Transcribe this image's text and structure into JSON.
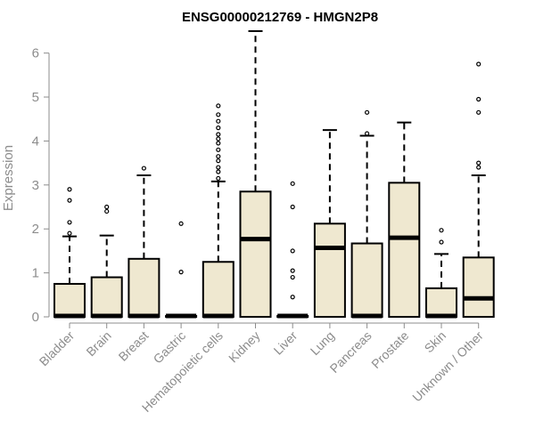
{
  "chart_data": {
    "type": "box",
    "title": "ENSG00000212769 - HMGN2P8",
    "xlabel": "",
    "ylabel": "Expression",
    "ylim": [
      0,
      6.6
    ],
    "yticks": [
      0,
      1,
      2,
      3,
      4,
      5,
      6
    ],
    "box_fill": "#efe8d0",
    "categories": [
      "Bladder",
      "Brain",
      "Breast",
      "Gastric",
      "Hematopoietic cells",
      "Kidney",
      "Liver",
      "Lung",
      "Pancreas",
      "Prostate",
      "Skin",
      "Unknown / Other"
    ],
    "boxes": [
      {
        "q1": 0,
        "median": 0.02,
        "q3": 0.75,
        "whisker_low": 0,
        "whisker_high": 1.83,
        "outliers": [
          1.9,
          2.15,
          2.65,
          2.9
        ]
      },
      {
        "q1": 0,
        "median": 0.02,
        "q3": 0.9,
        "whisker_low": 0,
        "whisker_high": 1.85,
        "outliers": [
          2.4,
          2.5
        ]
      },
      {
        "q1": 0,
        "median": 0.02,
        "q3": 1.32,
        "whisker_low": 0,
        "whisker_high": 3.22,
        "outliers": [
          3.38
        ]
      },
      {
        "q1": 0,
        "median": 0.02,
        "q3": 0.02,
        "whisker_low": 0,
        "whisker_high": 0.02,
        "outliers": [
          1.02,
          2.12
        ]
      },
      {
        "q1": 0,
        "median": 0.02,
        "q3": 1.25,
        "whisker_low": 0,
        "whisker_high": 3.08,
        "outliers": [
          3.15,
          3.3,
          3.4,
          3.55,
          3.65,
          3.8,
          3.95,
          4.05,
          4.15,
          4.3,
          4.45,
          4.6,
          4.8
        ]
      },
      {
        "q1": 0,
        "median": 1.77,
        "q3": 2.85,
        "whisker_low": 0,
        "whisker_high": 6.5,
        "outliers": []
      },
      {
        "q1": 0,
        "median": 0.02,
        "q3": 0.02,
        "whisker_low": 0,
        "whisker_high": 0.02,
        "outliers": [
          0.45,
          0.9,
          1.05,
          1.5,
          2.5,
          3.03
        ]
      },
      {
        "q1": 0,
        "median": 1.57,
        "q3": 2.12,
        "whisker_low": 0,
        "whisker_high": 4.25,
        "outliers": []
      },
      {
        "q1": 0,
        "median": 0.02,
        "q3": 1.67,
        "whisker_low": 0,
        "whisker_high": 4.12,
        "outliers": [
          4.17,
          4.65
        ]
      },
      {
        "q1": 0,
        "median": 1.8,
        "q3": 3.05,
        "whisker_low": 0,
        "whisker_high": 4.42,
        "outliers": []
      },
      {
        "q1": 0,
        "median": 0.02,
        "q3": 0.65,
        "whisker_low": 0,
        "whisker_high": 1.43,
        "outliers": [
          1.7,
          1.97
        ]
      },
      {
        "q1": 0,
        "median": 0.42,
        "q3": 1.35,
        "whisker_low": 0,
        "whisker_high": 3.22,
        "outliers": [
          3.4,
          3.5,
          4.65,
          4.95,
          5.75
        ]
      }
    ]
  }
}
